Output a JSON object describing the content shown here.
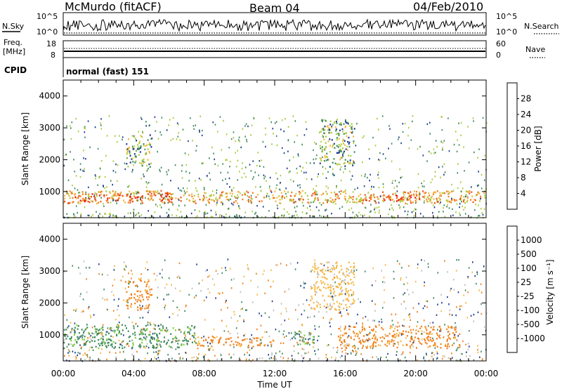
{
  "header": {
    "station": "McMurdo (fitACF)",
    "beam": "Beam 04",
    "date": "04/Feb/2010"
  },
  "panels": {
    "nsky": {
      "left_label": "N.Sky",
      "right_label": "N.Search",
      "left_ticks": [
        "10^5",
        "10^0"
      ],
      "right_ticks": [
        "10^5",
        "10^0"
      ]
    },
    "freq": {
      "left_label_1": "Freq.",
      "left_label_2": "[MHz]",
      "left_ticks": [
        "18",
        "8"
      ],
      "right_label": "Nave",
      "right_ticks": [
        "60",
        "0"
      ]
    },
    "cpid": {
      "label": "CPID",
      "text": "normal (fast) 151"
    }
  },
  "colors": {
    "blue": "#1f3ff0",
    "navy": "#1c3b8f",
    "green_dark": "#3f8a5e",
    "green_light": "#7fd03a",
    "grey": "#bdbdbd",
    "orange_light": "#f5b640",
    "orange": "#f07f1a",
    "red": "#e81414"
  },
  "chart_data": [
    {
      "type": "heatmap",
      "title": "",
      "quantity": "Power",
      "ylabel": "Slant Range [km]",
      "xlabel": "",
      "ylim": [
        180,
        4500
      ],
      "yticks": [
        1000,
        2000,
        3000,
        4000
      ],
      "xticks": [
        "00:00",
        "04:00",
        "08:00",
        "12:00",
        "16:00",
        "20:00",
        "00:00"
      ],
      "xlim_hours": [
        0,
        24
      ],
      "colorbar": {
        "label": "Power [dB]",
        "ticks": [
          "28",
          "24",
          "20",
          "16",
          "12",
          "8",
          "4"
        ],
        "colors": [
          "#e81414",
          "#f0501a",
          "#f07f1a",
          "#f5b640",
          "#aacb3a",
          "#3f8a5e",
          "#1c3b8f",
          "#1f3ff0"
        ]
      },
      "regions": [
        {
          "t": [
            0.0,
            24.0
          ],
          "r": [
            650,
            1050
          ],
          "value_db": 18
        },
        {
          "t": [
            0.5,
            4.5
          ],
          "r": [
            700,
            950
          ],
          "value_db": 24
        },
        {
          "t": [
            4.0,
            6.2
          ],
          "r": [
            750,
            1000
          ],
          "value_db": 22
        },
        {
          "t": [
            17.0,
            20.5
          ],
          "r": [
            720,
            950
          ],
          "value_db": 24
        },
        {
          "t": [
            14.5,
            16.5
          ],
          "r": [
            1800,
            3300
          ],
          "value_db": 10
        },
        {
          "t": [
            3.5,
            5.0
          ],
          "r": [
            1800,
            2800
          ],
          "value_db": 10
        }
      ]
    },
    {
      "type": "heatmap",
      "title": "",
      "quantity": "Velocity",
      "ylabel": "Slant Range [km]",
      "xlabel": "Time UT",
      "ylim": [
        180,
        4500
      ],
      "yticks": [
        1000,
        2000,
        3000,
        4000
      ],
      "xticks": [
        "00:00",
        "04:00",
        "08:00",
        "12:00",
        "16:00",
        "20:00",
        "00:00"
      ],
      "xlim_hours": [
        0,
        24
      ],
      "colorbar": {
        "label": "Velocity [m s⁻¹]",
        "ticks": [
          "1000",
          "500",
          "100",
          "25",
          "-25",
          "-100",
          "-500",
          "-1000"
        ],
        "colors": [
          "#1f3ff0",
          "#1c3b8f",
          "#3f8a5e",
          "#7fd03a",
          "#bdbdbd",
          "#f5b640",
          "#f07f1a",
          "#f0501a",
          "#e81414"
        ]
      },
      "regions": [
        {
          "t": [
            0.0,
            7.5
          ],
          "r": [
            600,
            1350
          ],
          "value_ms": 100
        },
        {
          "t": [
            7.5,
            12.0
          ],
          "r": [
            650,
            950
          ],
          "value_ms": -100
        },
        {
          "t": [
            13.0,
            14.5
          ],
          "r": [
            700,
            1100
          ],
          "value_ms": 100
        },
        {
          "t": [
            15.5,
            22.5
          ],
          "r": [
            600,
            1300
          ],
          "value_ms": -100
        },
        {
          "t": [
            14.0,
            16.5
          ],
          "r": [
            1800,
            3300
          ],
          "value_ms": -25
        },
        {
          "t": [
            3.5,
            5.0
          ],
          "r": [
            1800,
            2800
          ],
          "value_ms": -100
        }
      ]
    }
  ]
}
